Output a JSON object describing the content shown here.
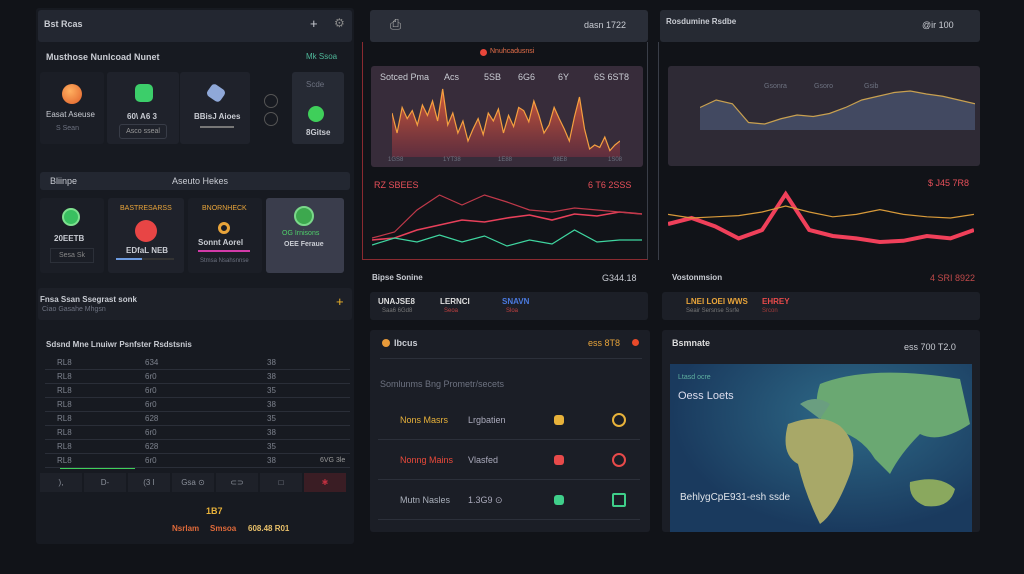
{
  "left": {
    "header_title": "Bst Rcas",
    "section1": {
      "title": "Musthose Nunlcoad Nunet",
      "link": "Mk Ssoa"
    },
    "cards1": [
      {
        "label": "Easat Aseuse",
        "sub": "S Sean"
      },
      {
        "label": "60\\ A6 3",
        "button": "Asco sseal"
      },
      {
        "label": "BBisJ Aioes"
      },
      {
        "label": "Scde",
        "value": "8Gitse"
      }
    ],
    "section2": {
      "left": "Bliinpe",
      "center": "Aseuto Hekes"
    },
    "cards2": [
      {
        "value": "20EETB",
        "button": "Sesa Sk"
      },
      {
        "title": "BASTRESARSS",
        "label": "EDfaL NEB"
      },
      {
        "title": "BNORNHECK",
        "label": "Sonnt Aorel",
        "sub": "Stmsa Nsahsnnse"
      },
      {
        "title": "OG Irnisons",
        "label": "OEE Feraue"
      }
    ],
    "section3": {
      "title": "Fnsa Ssan Ssegrast sonk",
      "sub": "Ciao Gasahe Mhgsn"
    },
    "table": {
      "title": "Sdsnd Mne Lnuiwr Psnfster Rsdstsnis",
      "rows": [
        [
          "RL8",
          "634",
          "38"
        ],
        [
          "RL8",
          "6r0",
          "38"
        ],
        [
          "RL8",
          "6r0",
          "35"
        ],
        [
          "RL8",
          "6r0",
          "38"
        ],
        [
          "RL8",
          "628",
          "35"
        ],
        [
          "RL8",
          "6r0",
          "38"
        ],
        [
          "RL8",
          "628",
          "35"
        ],
        [
          "RL8",
          "6r0",
          "38"
        ]
      ],
      "last_note": "6VG 3le"
    },
    "toolbar": [
      "),",
      "D-",
      "(3 I",
      "Gsa ⊙",
      "⊂⊃",
      "□",
      "✱"
    ],
    "footer": {
      "count": "1B7",
      "a": "Nsrlam",
      "b": "Smsoa",
      "c": "608.48 R01"
    }
  },
  "mid": {
    "header_value": "dasn 1722",
    "chart_label": "Nnuhcadusnsi",
    "area_chart": {
      "headers": [
        "Sotced Pma",
        "Acs",
        "5SB",
        "6G6",
        "6Y",
        "6S 6ST8"
      ],
      "xticks": [
        "1GS8",
        "1YT38",
        "1E88",
        "98E8",
        "1S08"
      ]
    },
    "lines_left": "RZ SBEES",
    "lines_right": "6 T6 2SSS",
    "tabs_title": "Bipse Sonine",
    "tabs_value": "G344.18",
    "tabs": [
      {
        "label": "UNAJSE8",
        "sub": "Saa6 6Gd8"
      },
      {
        "label": "LERNCI",
        "sub": "Seoa"
      },
      {
        "label": "SNAVN",
        "sub": "Sloa"
      }
    ],
    "list": {
      "title": "Ibcus",
      "badge": "ess 8T8",
      "subtitle": "Somlunms Bng Prometr/secets",
      "items": [
        {
          "name": "Nons Masrs",
          "meta": "Lrgbatien",
          "color": "#e8b23a"
        },
        {
          "name": "Nonng Mains",
          "meta": "Vlasfed",
          "color": "#ea4a3a"
        },
        {
          "name": "Mutn Nasles",
          "meta": "1.3G9 ⊙",
          "color": "#aab0bb"
        }
      ]
    }
  },
  "right": {
    "header_title": "Rosdumine Rsdbe",
    "header_value": "@ir 100",
    "chart_labels": [
      "Gsonra",
      "Gsoro",
      "Gsib"
    ],
    "lines_right": "$ J45 7R8",
    "tabs_title": "Vostonmsion",
    "tabs_value": "4 SRI 8922",
    "tabs": [
      {
        "label": "LNEI LOEI WWS",
        "sub": "Seair Sersnse Ssrfe"
      },
      {
        "label": "EHREY",
        "sub": "Srcon"
      }
    ],
    "map": {
      "title": "Bsmnate",
      "value": "ess 700 T2.0",
      "label_small": "Ltasd ocre",
      "label": "Oess Loets",
      "caption": "BehlygCpE931-esh ssde"
    }
  },
  "chart_data": [
    {
      "type": "area",
      "title": "Sotced Pma",
      "values": [
        55,
        30,
        62,
        48,
        58,
        40,
        65,
        52,
        70,
        45,
        85,
        40,
        55,
        30,
        45,
        20,
        35,
        48,
        28,
        55,
        45,
        60,
        30,
        52,
        38,
        62,
        58,
        44,
        70,
        52,
        30,
        40,
        62,
        48,
        35,
        20,
        50,
        75,
        35,
        10,
        15,
        12,
        25,
        8,
        15,
        20
      ]
    },
    {
      "type": "line",
      "series": [
        {
          "name": "red1",
          "color": "#e8405a",
          "values": [
            10,
            12,
            20,
            25,
            30,
            28,
            32,
            35,
            30,
            36,
            34,
            38,
            36
          ]
        },
        {
          "name": "red2",
          "color": "#c0394a",
          "values": [
            12,
            18,
            40,
            55,
            45,
            55,
            48,
            40,
            38,
            42,
            40,
            38,
            36
          ]
        },
        {
          "name": "green",
          "color": "#3fd6a0",
          "values": [
            5,
            12,
            8,
            15,
            8,
            14,
            4,
            10,
            6,
            20,
            8,
            10,
            10
          ]
        }
      ]
    },
    {
      "type": "area",
      "title": "Rosdumine",
      "values": [
        30,
        40,
        35,
        10,
        8,
        15,
        20,
        18,
        22,
        30,
        40,
        45,
        50,
        52,
        48,
        45,
        40,
        35
      ]
    },
    {
      "type": "line",
      "series": [
        {
          "name": "red",
          "color": "#f0405a",
          "values": [
            20,
            25,
            18,
            8,
            15,
            45,
            15,
            10,
            8,
            5,
            6,
            10,
            8,
            15
          ]
        },
        {
          "name": "orange",
          "color": "#d89a3a",
          "values": [
            28,
            25,
            26,
            27,
            30,
            35,
            30,
            26,
            28,
            32,
            28,
            26,
            25,
            28
          ]
        }
      ]
    }
  ]
}
